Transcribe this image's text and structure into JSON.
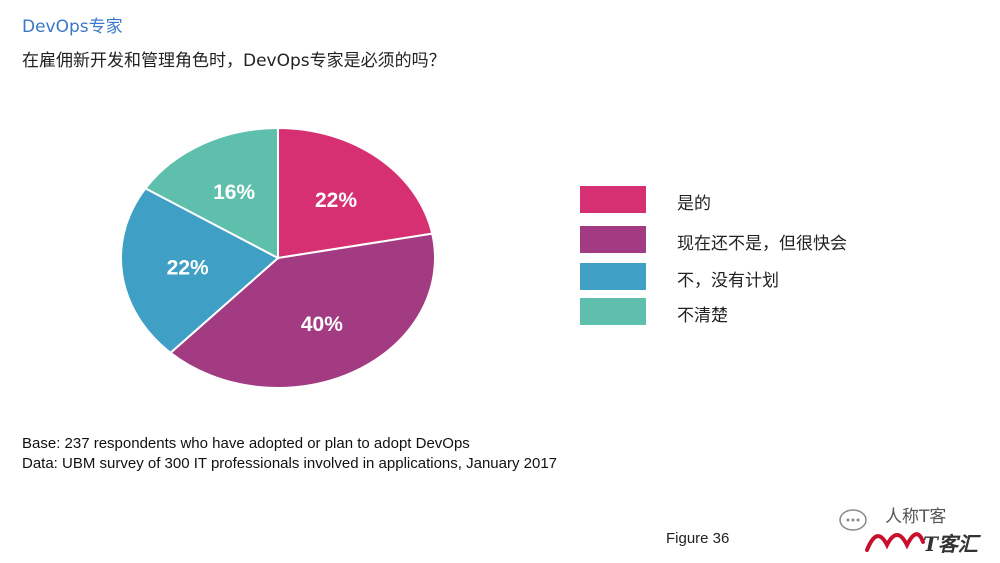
{
  "header": {
    "section_title": "DevOps专家",
    "question": "在雇佣新开发和管理角色时，DevOps专家是必须的吗？"
  },
  "chart_data": {
    "type": "pie",
    "categories": [
      "是的",
      "现在还不是，但很快会",
      "不，没有计划",
      "不清楚"
    ],
    "values": [
      22,
      40,
      22,
      16
    ],
    "labels": [
      "22%",
      "40%",
      "22%",
      "16%"
    ],
    "colors": [
      "#d63072",
      "#a33b83",
      "#3f9fc4",
      "#5ebfad"
    ],
    "legend_position": "right"
  },
  "footnotes": {
    "base": "Base: 237 respondents who have adopted or plan to adopt DevOps",
    "data": "Data: UBM survey of 300 IT professionals involved in applications, January 2017"
  },
  "figure_label": "Figure 36",
  "watermark": {
    "name": "人称T客",
    "brand": "T客汇"
  }
}
